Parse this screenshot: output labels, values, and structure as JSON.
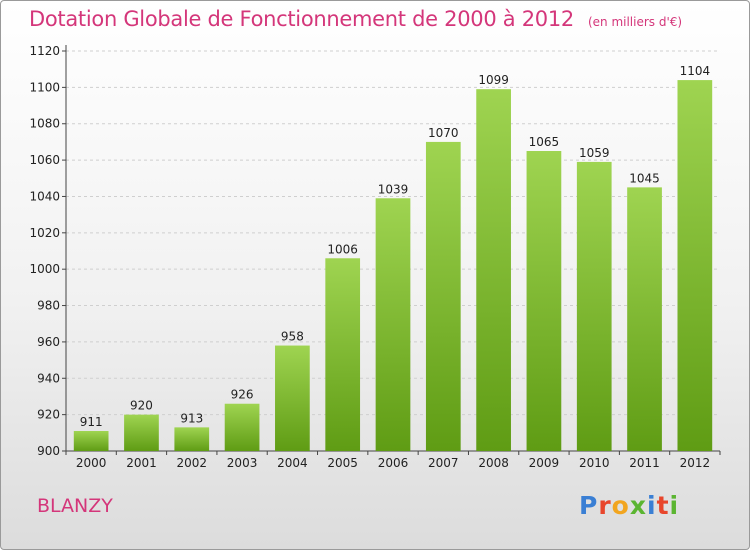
{
  "title": "Dotation Globale de Fonctionnement de 2000 à 2012",
  "subtitle": "(en milliers d'€)",
  "place": "BLANZY",
  "logo": {
    "text": "Proxiti",
    "letter_colors": [
      "#3a7fd4",
      "#e8462c",
      "#f2a51f",
      "#5bb531",
      "#3a7fd4",
      "#e8462c",
      "#5bb531"
    ]
  },
  "chart_data": {
    "type": "bar",
    "title": "Dotation Globale de Fonctionnement de 2000 à 2012",
    "subtitle": "(en milliers d'€)",
    "categories": [
      "2000",
      "2001",
      "2002",
      "2003",
      "2004",
      "2005",
      "2006",
      "2007",
      "2008",
      "2009",
      "2010",
      "2011",
      "2012"
    ],
    "values": [
      911,
      920,
      913,
      926,
      958,
      1006,
      1039,
      1070,
      1099,
      1065,
      1059,
      1045,
      1104
    ],
    "data_labels": [
      "911",
      "920",
      "913",
      "926",
      "958",
      "1006",
      "1039",
      "1070",
      "1099",
      "1065",
      "1059",
      "1045",
      "1104"
    ],
    "ylim": [
      900,
      1120
    ],
    "yticks": [
      900,
      920,
      940,
      960,
      980,
      1000,
      1020,
      1040,
      1060,
      1080,
      1100,
      1120
    ],
    "grid": true,
    "bar_color_top": "#9fd451",
    "bar_color_bottom": "#5f9c14"
  }
}
